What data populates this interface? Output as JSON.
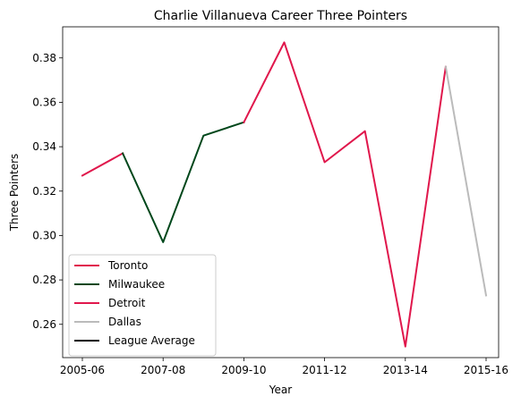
{
  "chart_data": {
    "type": "line",
    "title": "Charlie Villanueva Career Three Pointers",
    "xlabel": "Year",
    "ylabel": "Three Pointers",
    "x_categories": [
      "2005-06",
      "2006-07",
      "2007-08",
      "2008-09",
      "2009-10",
      "2010-11",
      "2011-12",
      "2012-13",
      "2013-14",
      "2014-15",
      "2015-16"
    ],
    "x_tick_labels": [
      "2005-06",
      "2007-08",
      "2009-10",
      "2011-12",
      "2013-14",
      "2015-16"
    ],
    "y_ticks": [
      0.26,
      0.28,
      0.3,
      0.32,
      0.34,
      0.36,
      0.38
    ],
    "y_tick_labels": [
      "0.26",
      "0.28",
      "0.30",
      "0.32",
      "0.34",
      "0.36",
      "0.38"
    ],
    "ylim": [
      0.245,
      0.394
    ],
    "grid": false,
    "legend_position": "lower-left",
    "series": [
      {
        "name": "Toronto",
        "color": "#e0174c",
        "x": [
          "2005-06",
          "2006-07"
        ],
        "values": [
          0.327,
          0.337
        ]
      },
      {
        "name": "Milwaukee",
        "color": "#00471b",
        "x": [
          "2006-07",
          "2007-08",
          "2008-09",
          "2009-10"
        ],
        "values": [
          0.337,
          0.297,
          0.345,
          0.351
        ]
      },
      {
        "name": "Detroit",
        "color": "#e0174c",
        "x": [
          "2009-10",
          "2010-11",
          "2011-12",
          "2012-13",
          "2013-14",
          "2014-15"
        ],
        "values": [
          0.351,
          0.387,
          0.333,
          0.347,
          0.25,
          0.376
        ]
      },
      {
        "name": "Dallas",
        "color": "#bbbbbb",
        "x": [
          "2014-15",
          "2015-16"
        ],
        "values": [
          0.376,
          0.273
        ]
      },
      {
        "name": "League Average",
        "color": "#000000",
        "x": [],
        "values": []
      }
    ]
  }
}
